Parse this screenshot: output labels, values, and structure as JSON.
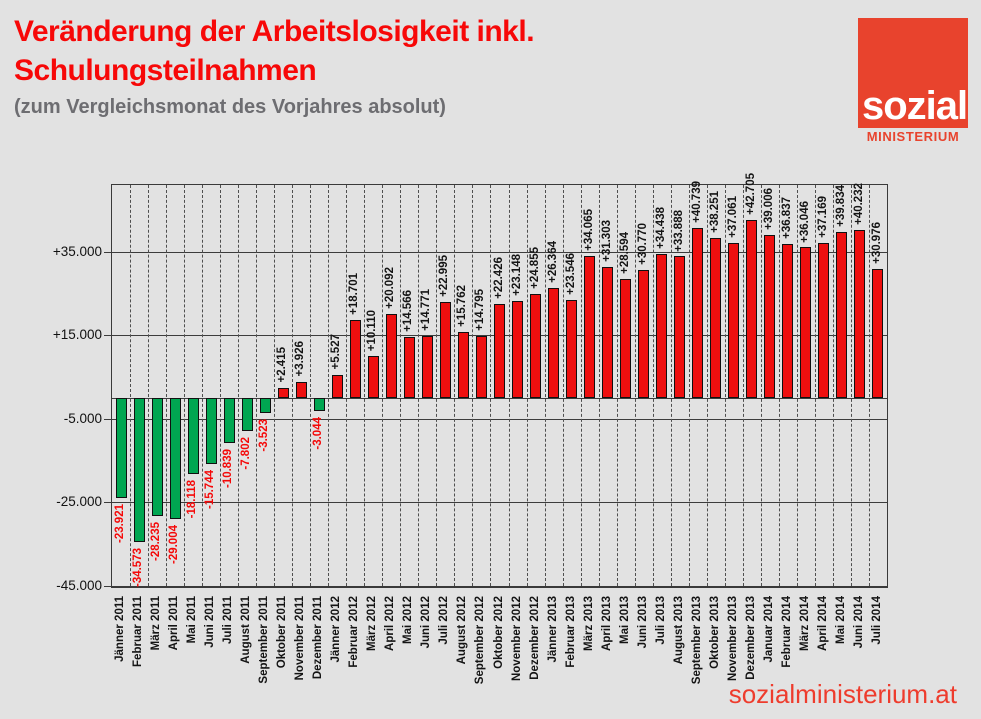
{
  "header": {
    "title_line1": "Veränderung der Arbeitslosigkeit inkl.",
    "title_line2": "Schulungsteilnahmen",
    "subtitle": "(zum Vergleichsmonat des Vorjahres absolut)",
    "title_color": "#f70808",
    "subtitle_color": "#6d6d71"
  },
  "logo": {
    "word_top": "sozial",
    "word_bottom": "MINISTERIUM",
    "square_color": "#e8432d",
    "word_top_color": "#ffffff",
    "word_bottom_color": "#e8432d"
  },
  "footer": {
    "website": "sozialministerium.at",
    "color": "#ee3c2d"
  },
  "chart_data": {
    "type": "bar",
    "title": "Veränderung der Arbeitslosigkeit inkl. Schulungsteilnahmen",
    "subtitle": "(zum Vergleichsmonat des Vorjahres absolut)",
    "categories": [
      "Jänner 2011",
      "Februar 2011",
      "März 2011",
      "April 2011",
      "Mai 2011",
      "Juni 2011",
      "Juli 2011",
      "August 2011",
      "September 2011",
      "Oktober 2011",
      "November 2011",
      "Dezember 2011",
      "Jänner 2012",
      "Februar 2012",
      "März 2012",
      "April 2012",
      "Mai 2012",
      "Juni 2012",
      "Juli 2012",
      "August 2012",
      "September 2012",
      "Oktober 2012",
      "November 2012",
      "Dezember 2012",
      "Jänner 2013",
      "Februar 2013",
      "März 2013",
      "April 2013",
      "Mai 2013",
      "Juni 2013",
      "Juli 2013",
      "August 2013",
      "September 2013",
      "Oktober 2013",
      "November 2013",
      "Dezember 2013",
      "Januar 2014",
      "Februar 2014",
      "März 2014",
      "April 2014",
      "Mai 2014",
      "Juni 2014",
      "Juli 2014"
    ],
    "values": [
      -23921,
      -34573,
      -28235,
      -29004,
      -18118,
      -15744,
      -10839,
      -7802,
      -3523,
      2415,
      3926,
      -3044,
      5527,
      18701,
      10110,
      20092,
      14566,
      14771,
      22995,
      15762,
      14795,
      22426,
      23148,
      24855,
      26364,
      23546,
      34065,
      31303,
      28594,
      30770,
      34438,
      33888,
      40739,
      38251,
      37061,
      42705,
      39006,
      36837,
      36046,
      37169,
      39834,
      40232,
      30976
    ],
    "value_labels": [
      "-23.921",
      "-34.573",
      "-28.235",
      "-29.004",
      "-18.118",
      "-15.744",
      "-10.839",
      "-7.802",
      "-3.523",
      "+2.415",
      "+3.926",
      "-3.044",
      "+5.527",
      "+18.701",
      "+10.110",
      "+20.092",
      "+14.566",
      "+14.771",
      "+22.995",
      "+15.762",
      "+14.795",
      "+22.426",
      "+23.148",
      "+24.855",
      "+26.364",
      "+23.546",
      "+34.065",
      "+31.303",
      "+28.594",
      "+30.770",
      "+34.438",
      "+33.888",
      "+40.739",
      "+38.251",
      "+37.061",
      "+42.705",
      "+39.006",
      "+36.837",
      "+36.046",
      "+37.169",
      "+39.834",
      "+40.232",
      "+30.976"
    ],
    "xlabel": "",
    "ylabel": "",
    "ylim": [
      -45000,
      51000
    ],
    "yticks": [
      {
        "value": 35000,
        "label": "+35.000"
      },
      {
        "value": 15000,
        "label": "+15.000"
      },
      {
        "value": -5000,
        "label": "-5.000"
      },
      {
        "value": -25000,
        "label": "-25.000"
      },
      {
        "value": -45000,
        "label": "-45.000"
      }
    ],
    "grid": {
      "horizontal": "solid",
      "vertical": "dashed",
      "zero_line": true
    },
    "legend": "none",
    "bar_positive_color": "#ee0f0f",
    "bar_negative_color": "#00a651",
    "label_positive_color": "#141414",
    "label_negative_color": "#f50808"
  }
}
